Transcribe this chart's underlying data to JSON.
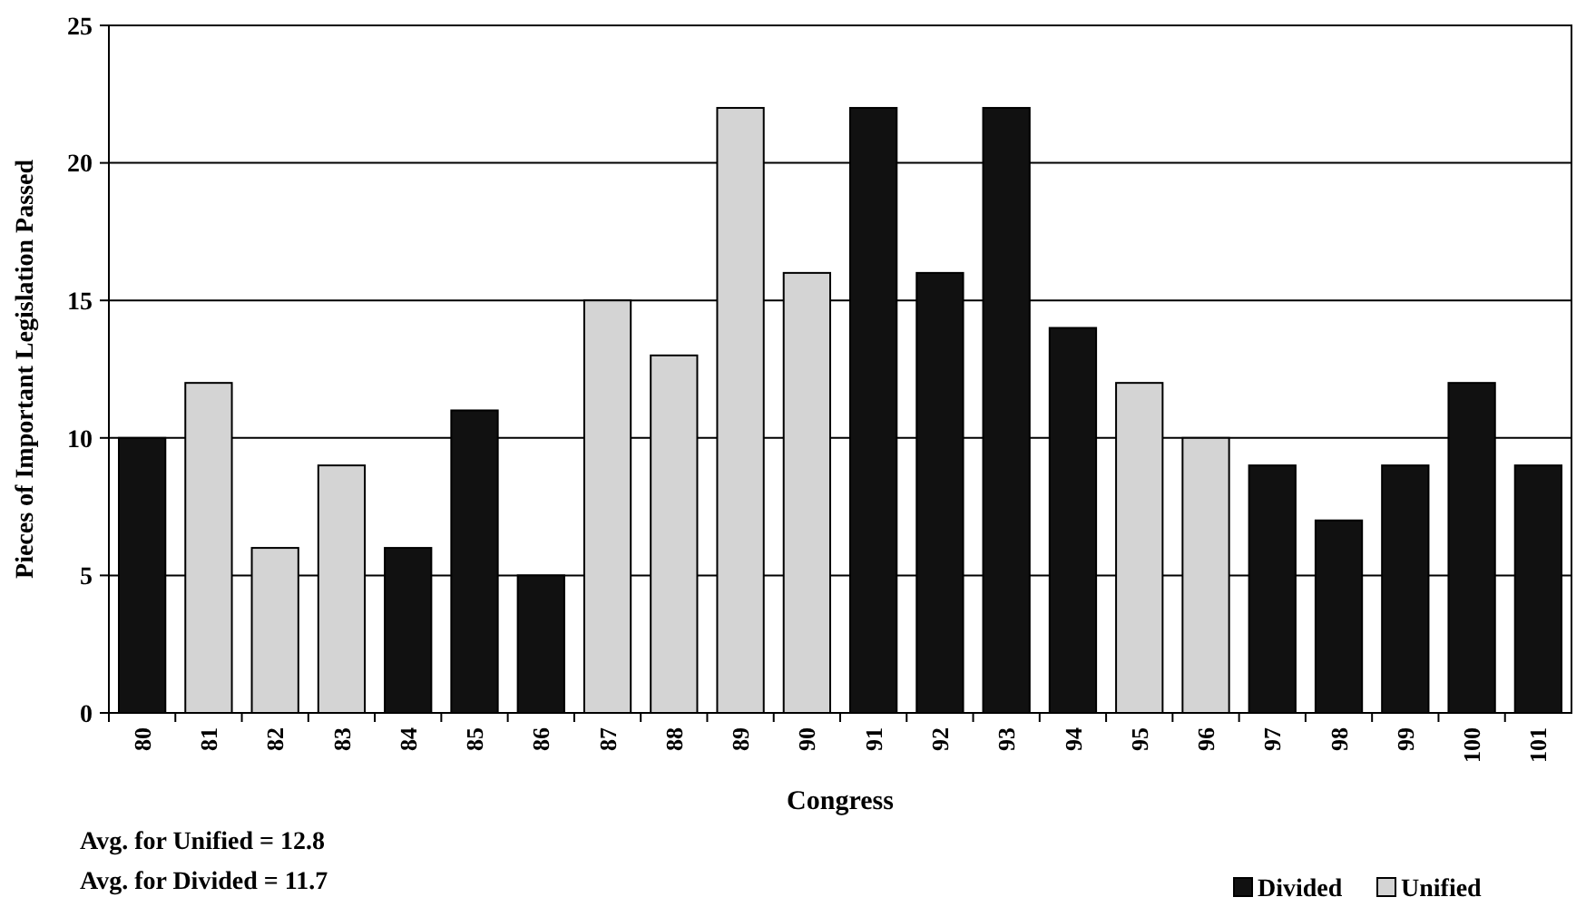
{
  "chart_data": {
    "type": "bar",
    "xlabel": "Congress",
    "ylabel": "Pieces of Important Legislation Passed",
    "categories": [
      "80",
      "81",
      "82",
      "83",
      "84",
      "85",
      "86",
      "87",
      "88",
      "89",
      "90",
      "91",
      "92",
      "93",
      "94",
      "95",
      "96",
      "97",
      "98",
      "99",
      "100",
      "101"
    ],
    "series": [
      {
        "name": "Divided",
        "color": "#111111",
        "values": [
          10,
          null,
          null,
          null,
          6,
          11,
          5,
          null,
          null,
          null,
          null,
          22,
          16,
          22,
          14,
          null,
          null,
          9,
          7,
          9,
          12,
          9
        ]
      },
      {
        "name": "Unified",
        "color": "#d4d4d4",
        "values": [
          null,
          12,
          6,
          9,
          null,
          null,
          null,
          15,
          13,
          22,
          16,
          null,
          null,
          null,
          null,
          12,
          10,
          null,
          null,
          null,
          null,
          null
        ]
      }
    ],
    "stacked": true,
    "ylim": [
      0,
      25
    ],
    "yticks": [
      0,
      5,
      10,
      15,
      20,
      25
    ],
    "grid": "y",
    "legend": "bottom right",
    "annotations": [
      "Avg. for Unified = 12.8",
      "Avg. for Divided = 11.7"
    ]
  }
}
